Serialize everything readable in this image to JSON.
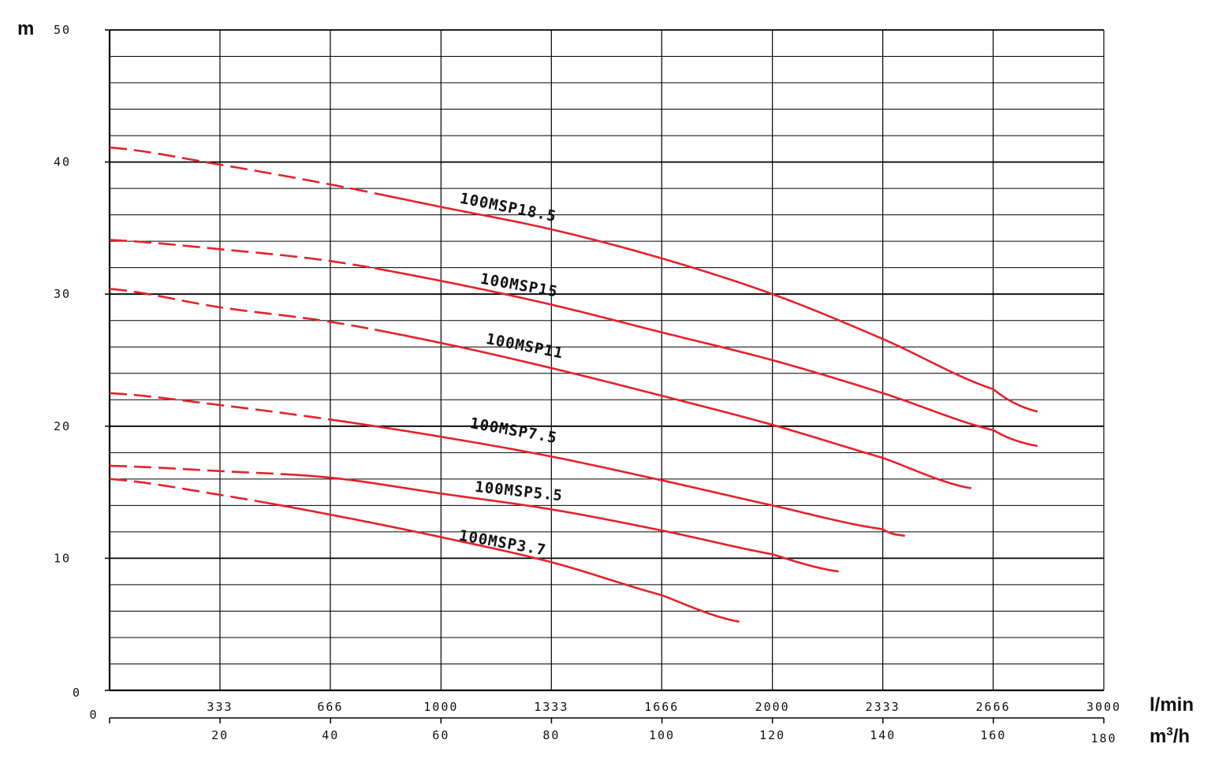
{
  "chart_data": {
    "type": "line",
    "title": "",
    "y_unit": "m",
    "x_unit_primary": "l/min",
    "x_unit_secondary_base": "m",
    "x_unit_secondary_sup": "3",
    "x_unit_secondary_tail": "/h",
    "ylim": [
      0,
      50
    ],
    "y_ticks": [
      0,
      10,
      20,
      30,
      40,
      50
    ],
    "y_tick_labels": [
      "0",
      "10",
      "20",
      "30",
      "40",
      "50"
    ],
    "xlim_m3h": [
      0,
      180
    ],
    "x_ticks_m3h": [
      0,
      20,
      40,
      60,
      80,
      100,
      120,
      140,
      160,
      180
    ],
    "x_tick_labels_m3h": [
      "0",
      "20",
      "40",
      "60",
      "80",
      "100",
      "120",
      "140",
      "160",
      "180"
    ],
    "x_ticks_lmin": [
      333,
      666,
      1000,
      1333,
      1666,
      2000,
      2333,
      2666,
      3000
    ],
    "x_tick_labels_lmin": [
      "333",
      "666",
      "1000",
      "1333",
      "1666",
      "2000",
      "2333",
      "2666",
      "3000"
    ],
    "grid": true,
    "series": [
      {
        "name": "100MSP18.5",
        "dashed_until_m3h": 48,
        "label_at_m3h": 72,
        "label_at_m": 36.2,
        "label_angle": 11,
        "points": [
          [
            0,
            41.1
          ],
          [
            20,
            39.8
          ],
          [
            40,
            38.3
          ],
          [
            60,
            36.6
          ],
          [
            80,
            34.9
          ],
          [
            100,
            32.7
          ],
          [
            120,
            30.0
          ],
          [
            140,
            26.6
          ],
          [
            160,
            22.8
          ],
          [
            168,
            21.1
          ]
        ]
      },
      {
        "name": "100MSP15",
        "dashed_until_m3h": 48,
        "label_at_m3h": 74,
        "label_at_m": 30.3,
        "label_angle": 10,
        "points": [
          [
            0,
            34.1
          ],
          [
            20,
            33.4
          ],
          [
            40,
            32.5
          ],
          [
            60,
            31.0
          ],
          [
            80,
            29.2
          ],
          [
            100,
            27.1
          ],
          [
            120,
            25.0
          ],
          [
            140,
            22.5
          ],
          [
            160,
            19.7
          ],
          [
            168,
            18.5
          ]
        ]
      },
      {
        "name": "100MSP11",
        "dashed_until_m3h": 48,
        "label_at_m3h": 75,
        "label_at_m": 25.7,
        "label_angle": 11,
        "points": [
          [
            0,
            30.4
          ],
          [
            20,
            29.0
          ],
          [
            40,
            27.9
          ],
          [
            60,
            26.3
          ],
          [
            80,
            24.4
          ],
          [
            100,
            22.3
          ],
          [
            120,
            20.1
          ],
          [
            140,
            17.6
          ],
          [
            156,
            15.3
          ]
        ]
      },
      {
        "name": "100MSP7.5",
        "dashed_until_m3h": 40,
        "label_at_m3h": 73,
        "label_at_m": 19.3,
        "label_angle": 10,
        "points": [
          [
            0,
            22.5
          ],
          [
            20,
            21.6
          ],
          [
            40,
            20.5
          ],
          [
            60,
            19.2
          ],
          [
            80,
            17.7
          ],
          [
            100,
            15.9
          ],
          [
            120,
            14.0
          ],
          [
            140,
            12.2
          ],
          [
            144,
            11.7
          ]
        ]
      },
      {
        "name": "100MSP5.5",
        "dashed_until_m3h": 32,
        "label_at_m3h": 74,
        "label_at_m": 14.7,
        "label_angle": 6,
        "points": [
          [
            0,
            17.0
          ],
          [
            20,
            16.6
          ],
          [
            40,
            16.1
          ],
          [
            60,
            14.9
          ],
          [
            80,
            13.7
          ],
          [
            100,
            12.1
          ],
          [
            120,
            10.3
          ],
          [
            132,
            9.0
          ]
        ]
      },
      {
        "name": "100MSP3.7",
        "dashed_until_m3h": 28,
        "label_at_m3h": 71,
        "label_at_m": 10.8,
        "label_angle": 10,
        "points": [
          [
            0,
            16.0
          ],
          [
            20,
            14.8
          ],
          [
            40,
            13.3
          ],
          [
            60,
            11.6
          ],
          [
            80,
            9.7
          ],
          [
            100,
            7.2
          ],
          [
            114,
            5.2
          ]
        ]
      }
    ],
    "colors": {
      "curve": "#e4222b",
      "grid": "#000000",
      "text": "#111111"
    }
  }
}
